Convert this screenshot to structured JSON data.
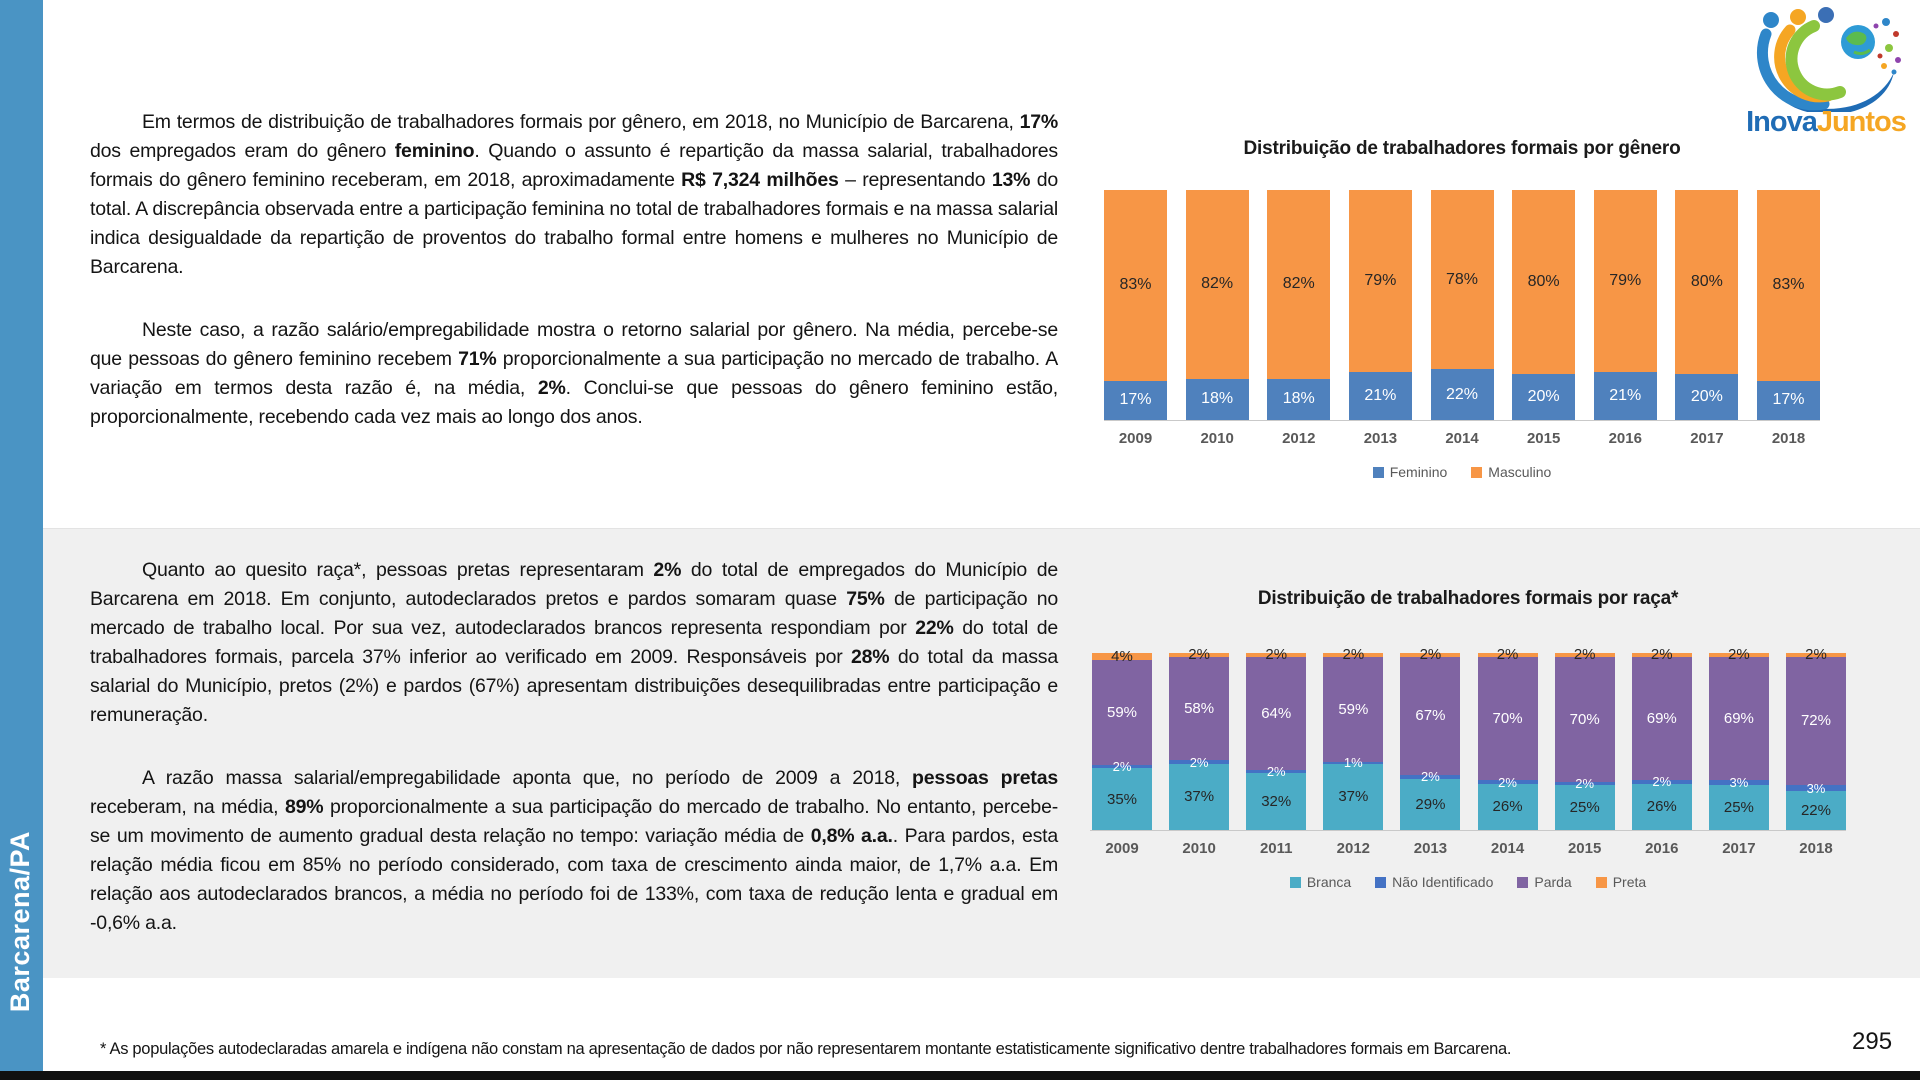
{
  "sidebar": {
    "label": "Barcarena/PA",
    "color": "#4A94C4"
  },
  "logo": {
    "word1": "Inova",
    "word2": "Juntos"
  },
  "paragraphs": {
    "p1": [
      {
        "t": "Em termos de distribuição de trabalhadores formais por gênero, em 2018, no Município de Barcarena, ",
        "b": false
      },
      {
        "t": "17%",
        "b": true
      },
      {
        "t": " dos empregados eram do gênero ",
        "b": false
      },
      {
        "t": "feminino",
        "b": true
      },
      {
        "t": ". Quando o assunto é repartição da massa salarial, trabalhadores formais do gênero feminino receberam, em 2018, aproximadamente ",
        "b": false
      },
      {
        "t": "R$ 7,324 milhões",
        "b": true
      },
      {
        "t": " – representando ",
        "b": false
      },
      {
        "t": "13%",
        "b": true
      },
      {
        "t": " do total. A discrepância observada entre a participação feminina no total de trabalhadores formais e na massa salarial indica desigualdade da repartição de proventos do trabalho formal entre homens e mulheres no Município de Barcarena.",
        "b": false
      }
    ],
    "p2": [
      {
        "t": "Neste caso, a razão salário/empregabilidade mostra o retorno salarial por gênero. Na média, percebe-se que pessoas do gênero feminino recebem ",
        "b": false
      },
      {
        "t": "71%",
        "b": true
      },
      {
        "t": " proporcionalmente a sua participação no mercado de trabalho. A variação em termos desta razão é, na média, ",
        "b": false
      },
      {
        "t": "2%",
        "b": true
      },
      {
        "t": ". Conclui-se que pessoas do gênero feminino estão, proporcionalmente, recebendo cada vez mais ao longo dos anos.",
        "b": false
      }
    ],
    "p3": [
      {
        "t": "Quanto ao quesito raça*, pessoas pretas representaram ",
        "b": false
      },
      {
        "t": "2%",
        "b": true
      },
      {
        "t": " do total de empregados do Município de Barcarena em 2018. Em conjunto, autodeclarados pretos e pardos somaram quase ",
        "b": false
      },
      {
        "t": "75%",
        "b": true
      },
      {
        "t": " de participação no mercado de trabalho local. Por sua vez, autodeclarados brancos representa respondiam por ",
        "b": false
      },
      {
        "t": "22%",
        "b": true
      },
      {
        "t": " do total de trabalhadores formais, parcela 37% inferior ao verificado em 2009. Responsáveis por ",
        "b": false
      },
      {
        "t": "28%",
        "b": true
      },
      {
        "t": " do total da massa salarial do Município, pretos (2%) e pardos (67%) apresentam distribuições desequilibradas entre participação e remuneração.",
        "b": false
      }
    ],
    "p4": [
      {
        "t": "A razão massa salarial/empregabilidade aponta que, no período de 2009 a 2018, ",
        "b": false
      },
      {
        "t": "pessoas pretas",
        "b": true
      },
      {
        "t": " receberam, na média, ",
        "b": false
      },
      {
        "t": "89%",
        "b": true
      },
      {
        "t": " proporcionalmente a sua participação do mercado de trabalho. No entanto, percebe-se um movimento de aumento gradual desta relação no tempo: variação média de ",
        "b": false
      },
      {
        "t": "0,8% a.a.",
        "b": true
      },
      {
        "t": ". Para pardos, esta relação média ficou em 85% no período considerado, com taxa de crescimento ainda maior, de 1,7% a.a. Em relação aos autodeclarados brancos, a média no período foi de 133%, com taxa de redução lenta e gradual em -0,6% a.a.",
        "b": false
      }
    ]
  },
  "chart_data": [
    {
      "type": "bar",
      "stacked": true,
      "title": "Distribuição de trabalhadores formais por gênero",
      "categories": [
        "2009",
        "2010",
        "2012",
        "2013",
        "2014",
        "2015",
        "2016",
        "2017",
        "2018"
      ],
      "series": [
        {
          "name": "Feminino",
          "color": "#4F81BD",
          "label_color": "#FFFFFF",
          "values": [
            17,
            18,
            18,
            21,
            22,
            20,
            21,
            20,
            17
          ]
        },
        {
          "name": "Masculino",
          "color": "#F79646",
          "label_color": "#262626",
          "values": [
            83,
            82,
            82,
            79,
            78,
            80,
            79,
            80,
            83
          ]
        }
      ],
      "ylim": [
        0,
        100
      ],
      "grid": false,
      "legend_position": "bottom"
    },
    {
      "type": "bar",
      "stacked": true,
      "title": "Distribuição de trabalhadores formais por raça*",
      "categories": [
        "2009",
        "2010",
        "2011",
        "2012",
        "2013",
        "2014",
        "2015",
        "2016",
        "2017",
        "2018"
      ],
      "series": [
        {
          "name": "Branca",
          "color": "#4BACC6",
          "label_color": "#262626",
          "values": [
            35,
            37,
            32,
            37,
            29,
            26,
            25,
            26,
            25,
            22
          ]
        },
        {
          "name": "Não Identificado",
          "color": "#4472C4",
          "label_color": "#FFFFFF",
          "label_size": 13,
          "values": [
            2,
            2,
            2,
            1,
            2,
            2,
            2,
            2,
            3,
            3
          ]
        },
        {
          "name": "Parda",
          "color": "#8064A2",
          "label_color": "#FFFFFF",
          "values": [
            59,
            58,
            64,
            59,
            67,
            70,
            70,
            69,
            69,
            72
          ]
        },
        {
          "name": "Preta",
          "color": "#F79646",
          "label_color": "#262626",
          "values": [
            4,
            2,
            2,
            2,
            2,
            2,
            2,
            2,
            2,
            2
          ]
        }
      ],
      "ylim": [
        0,
        100
      ],
      "grid": false,
      "legend_position": "bottom"
    }
  ],
  "footer": {
    "footnote": "* As populações autodeclaradas amarela e indígena não constam na apresentação de dados por não representarem montante estatisticamente significativo dentre trabalhadores formais em Barcarena.",
    "page_number": "295"
  }
}
